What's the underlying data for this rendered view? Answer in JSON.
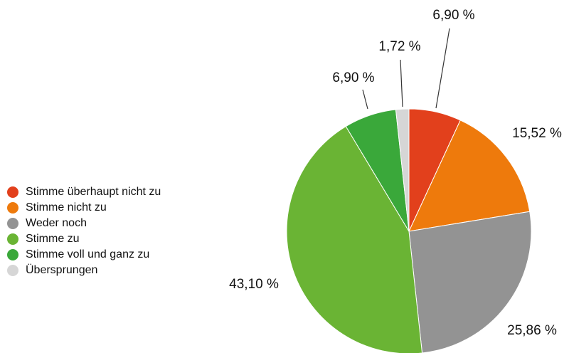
{
  "chart_data": {
    "type": "pie",
    "categories": [
      "Stimme überhaupt nicht zu",
      "Stimme nicht zu",
      "Weder noch",
      "Stimme zu",
      "Stimme voll und ganz zu",
      "Übersprungen"
    ],
    "values": [
      6.9,
      15.52,
      25.86,
      43.1,
      6.9,
      1.72
    ],
    "value_labels": [
      "6,90 %",
      "15,52 %",
      "25,86 %",
      "43,10 %",
      "6,90 %",
      "1,72 %"
    ],
    "colors": [
      "#e2401c",
      "#ee7a0c",
      "#939393",
      "#6ab434",
      "#3aa83a",
      "#d6d6d6"
    ],
    "legend": "left"
  }
}
